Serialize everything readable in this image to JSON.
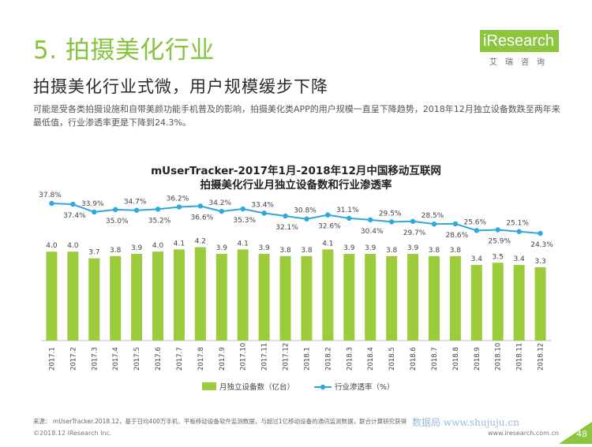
{
  "header": {
    "section_title": "5. 拍摄美化行业",
    "subtitle": "拍摄美化行业式微，用户规模缓步下降",
    "description": "可能是受各类拍摄设施和自带美颜功能手机普及的影响，拍摄美化类APP的用户规模一直呈下降趋势，2018年12月独立设备数跌至两年来最低值，行业渗透率更是下降到24.3%。"
  },
  "logo": {
    "name": "iResearch",
    "sub": "艾瑞咨询"
  },
  "colors": {
    "accent": "#8cc63e",
    "bar": "#9ccb3b",
    "line": "#2fa8e0"
  },
  "chart_data": {
    "type": "bar+line",
    "title_line1": "mUserTracker-2017年1月-2018年12月中国移动互联网",
    "title_line2": "拍摄美化行业月独立设备数和行业渗透率",
    "categories": [
      "2017.1",
      "2017.2",
      "2017.3",
      "2017.4",
      "2017.5",
      "2017.6",
      "2017.7",
      "2017.8",
      "2017.9",
      "2017.10",
      "2017.11",
      "2017.12",
      "2018.1",
      "2018.2",
      "2018.3",
      "2018.4",
      "2018.5",
      "2018.6",
      "2018.7",
      "2018.8",
      "2018.9",
      "2018.10",
      "2018.11",
      "2018.12"
    ],
    "series": [
      {
        "name": "月独立设备数（亿台）",
        "kind": "bar",
        "values": [
          4.0,
          4.0,
          3.7,
          3.8,
          3.9,
          4.0,
          4.1,
          4.2,
          3.9,
          4.1,
          3.9,
          3.8,
          3.8,
          4.1,
          3.9,
          3.9,
          3.8,
          3.9,
          3.8,
          3.8,
          3.4,
          3.5,
          3.4,
          3.3
        ],
        "labels": [
          "4.0",
          "4.0",
          "3.7",
          "3.8",
          "3.9",
          "4.0",
          "4.1",
          "4.2",
          "3.9",
          "4.1",
          "3.9",
          "3.8",
          "3.8",
          "4.1",
          "3.9",
          "3.9",
          "3.8",
          "3.9",
          "3.8",
          "3.8",
          "3.4",
          "3.5",
          "3.4",
          "3.3"
        ]
      },
      {
        "name": "行业渗透率（%）",
        "kind": "line",
        "values": [
          37.8,
          37.4,
          33.9,
          35.0,
          34.7,
          35.2,
          36.2,
          36.6,
          34.2,
          35.3,
          33.4,
          32.1,
          30.8,
          32.6,
          31.1,
          30.4,
          29.5,
          29.7,
          28.5,
          28.6,
          25.6,
          25.9,
          25.1,
          24.3
        ],
        "labels": [
          "37.8%",
          "37.4%",
          "33.9%",
          "35.0%",
          "34.7%",
          "35.2%",
          "36.2%",
          "36.6%",
          "34.2%",
          "35.3%",
          "33.4%",
          "32.1%",
          "30.8%",
          "32.6%",
          "31.1%",
          "30.4%",
          "29.5%",
          "29.7%",
          "28.5%",
          "28.6%",
          "25.6%",
          "25.9%",
          "25.1%",
          "24.3%"
        ],
        "label_position": [
          "above",
          "below",
          "above",
          "below",
          "above",
          "below",
          "above",
          "below",
          "above",
          "below",
          "above",
          "below",
          "above",
          "below",
          "above",
          "below",
          "above",
          "below",
          "above",
          "below",
          "above",
          "below",
          "above",
          "below"
        ]
      }
    ],
    "legend_position": "bottom"
  },
  "footer": {
    "source": "来源： mUserTracker.2018.12，基于日均400万手机、平板移动设备软件监测数据，与超过1亿移动设备的通讯监测数据，联合计算研究获得",
    "copyright": "©2018.12 iResearch Inc.",
    "website": "www.iresearch.com.cn",
    "page": "48",
    "watermark": "数据局 www.shujuju.cn"
  }
}
